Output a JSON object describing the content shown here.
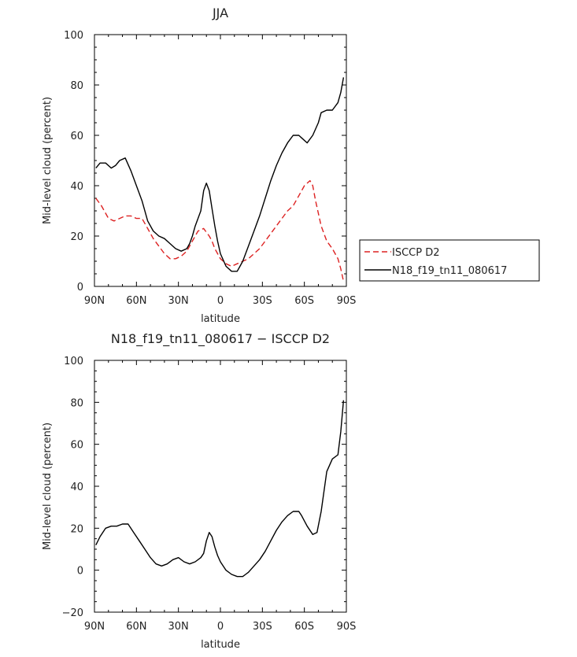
{
  "chart_data": [
    {
      "type": "line",
      "title": "JJA",
      "xlabel": "latitude",
      "ylabel": "Mid-level cloud (percent)",
      "xlim": [
        90,
        -90
      ],
      "ylim": [
        0,
        100
      ],
      "x_ticks": [
        90,
        60,
        30,
        0,
        -30,
        -60,
        -90
      ],
      "x_tick_labels": [
        "90N",
        "60N",
        "30N",
        "0",
        "30S",
        "60S",
        "90S"
      ],
      "y_ticks": [
        0,
        20,
        40,
        60,
        80,
        100
      ],
      "y_tick_labels": [
        "0",
        "20",
        "40",
        "60",
        "80",
        "100"
      ],
      "legend": "right",
      "series": [
        {
          "name": "ISCCP D2",
          "color": "#dd2222",
          "dash": "dashed",
          "x": [
            89,
            85,
            80,
            76,
            72,
            68,
            64,
            60,
            56,
            52,
            48,
            44,
            40,
            36,
            32,
            28,
            24,
            20,
            16,
            12,
            8,
            6,
            4,
            0,
            -4,
            -8,
            -12,
            -16,
            -20,
            -24,
            -28,
            -32,
            -36,
            -40,
            -44,
            -48,
            -52,
            -56,
            -60,
            -64,
            -66,
            -68,
            -72,
            -76,
            -80,
            -84,
            -86,
            -88
          ],
          "y": [
            35,
            32,
            27,
            26,
            27,
            28,
            28,
            27,
            27,
            23,
            19,
            16,
            13,
            11,
            11,
            12,
            14,
            18,
            22,
            23,
            20,
            18,
            15,
            11,
            9,
            8,
            9,
            10,
            11,
            13,
            15,
            18,
            21,
            24,
            27,
            30,
            32,
            36,
            40,
            42,
            40,
            34,
            24,
            18,
            15,
            11,
            7,
            2
          ]
        },
        {
          "name": "N18_f19_tn11_080617",
          "color": "#000000",
          "dash": "solid",
          "x": [
            89,
            86,
            82,
            78,
            75,
            72,
            68,
            64,
            60,
            56,
            52,
            48,
            44,
            40,
            36,
            32,
            28,
            24,
            22,
            20,
            18,
            14,
            12,
            10,
            8,
            6,
            4,
            2,
            0,
            -4,
            -8,
            -12,
            -14,
            -16,
            -18,
            -20,
            -24,
            -28,
            -32,
            -36,
            -40,
            -44,
            -48,
            -52,
            -56,
            -58,
            -62,
            -66,
            -70,
            -72,
            -76,
            -80,
            -84,
            -86,
            -88
          ],
          "y": [
            47,
            49,
            49,
            47,
            48,
            50,
            51,
            46,
            40,
            34,
            26,
            22,
            20,
            19,
            17,
            15,
            14,
            15,
            17,
            20,
            24,
            30,
            38,
            41,
            38,
            31,
            24,
            18,
            13,
            8,
            6,
            6,
            8,
            10,
            13,
            16,
            22,
            28,
            35,
            42,
            48,
            53,
            57,
            60,
            60,
            59,
            57,
            60,
            65,
            69,
            70,
            70,
            73,
            77,
            83
          ]
        }
      ]
    },
    {
      "type": "line",
      "title": "N18_f19_tn11_080617 − ISCCP D2",
      "xlabel": "latitude",
      "ylabel": "Mid-level cloud (percent)",
      "xlim": [
        90,
        -90
      ],
      "ylim": [
        -20,
        100
      ],
      "x_ticks": [
        90,
        60,
        30,
        0,
        -30,
        -60,
        -90
      ],
      "x_tick_labels": [
        "90N",
        "60N",
        "30N",
        "0",
        "30S",
        "60S",
        "90S"
      ],
      "y_ticks": [
        -20,
        0,
        20,
        40,
        60,
        80,
        100
      ],
      "y_tick_labels": [
        "−20",
        "0",
        "20",
        "40",
        "60",
        "80",
        "100"
      ],
      "series": [
        {
          "color": "#000000",
          "dash": "solid",
          "x": [
            89,
            86,
            82,
            78,
            74,
            70,
            66,
            62,
            58,
            54,
            50,
            46,
            42,
            38,
            34,
            30,
            26,
            22,
            18,
            14,
            12,
            10,
            8,
            6,
            4,
            2,
            0,
            -4,
            -8,
            -12,
            -16,
            -18,
            -20,
            -24,
            -28,
            -32,
            -36,
            -40,
            -44,
            -48,
            -52,
            -56,
            -58,
            -62,
            -66,
            -69,
            -72,
            -76,
            -80,
            -84,
            -86,
            -88
          ],
          "y": [
            12,
            16,
            20,
            21,
            21,
            22,
            22,
            18,
            14,
            10,
            6,
            3,
            2,
            3,
            5,
            6,
            4,
            3,
            4,
            6,
            8,
            14,
            18,
            16,
            11,
            7,
            4,
            0,
            -2,
            -3,
            -3,
            -2,
            -1,
            2,
            5,
            9,
            14,
            19,
            23,
            26,
            28,
            28,
            26,
            21,
            17,
            18,
            28,
            47,
            53,
            55,
            66,
            81
          ]
        }
      ]
    }
  ]
}
